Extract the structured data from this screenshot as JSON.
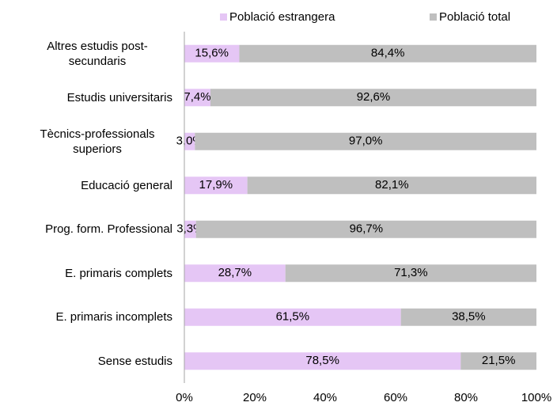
{
  "chart_data": {
    "type": "stacked_bar_horizontal",
    "categories": [
      "Altres estudis post-secundaris",
      "Estudis universitaris",
      "Tècnics-professionals superiors",
      "Educació general",
      "Prog. form. Professional",
      "E. primaris complets",
      "E. primaris incomplets",
      "Sense estudis"
    ],
    "series": [
      {
        "name": "Població estrangera",
        "color": "#e5c6f5",
        "values": [
          15.6,
          7.4,
          3.0,
          17.9,
          3.3,
          28.7,
          61.5,
          78.5
        ],
        "value_labels": [
          "15,6%",
          "7,4%",
          "3,0%",
          "17,9%",
          "3,3%",
          "28,7%",
          "61,5%",
          "78,5%"
        ]
      },
      {
        "name": "Població total",
        "color": "#bfbfbf",
        "values": [
          84.4,
          92.6,
          97.0,
          82.1,
          96.7,
          71.3,
          38.5,
          21.5
        ],
        "value_labels": [
          "84,4%",
          "92,6%",
          "97,0%",
          "82,1%",
          "96,7%",
          "71,3%",
          "38,5%",
          "21,5%"
        ]
      }
    ],
    "xlim": [
      0,
      100
    ],
    "xticks": [
      {
        "value": 0,
        "label": "0%"
      },
      {
        "value": 20,
        "label": "20%"
      },
      {
        "value": 40,
        "label": "40%"
      },
      {
        "value": 60,
        "label": "60%"
      },
      {
        "value": 80,
        "label": "80%"
      },
      {
        "value": 100,
        "label": "100%"
      }
    ],
    "legend": "top"
  }
}
